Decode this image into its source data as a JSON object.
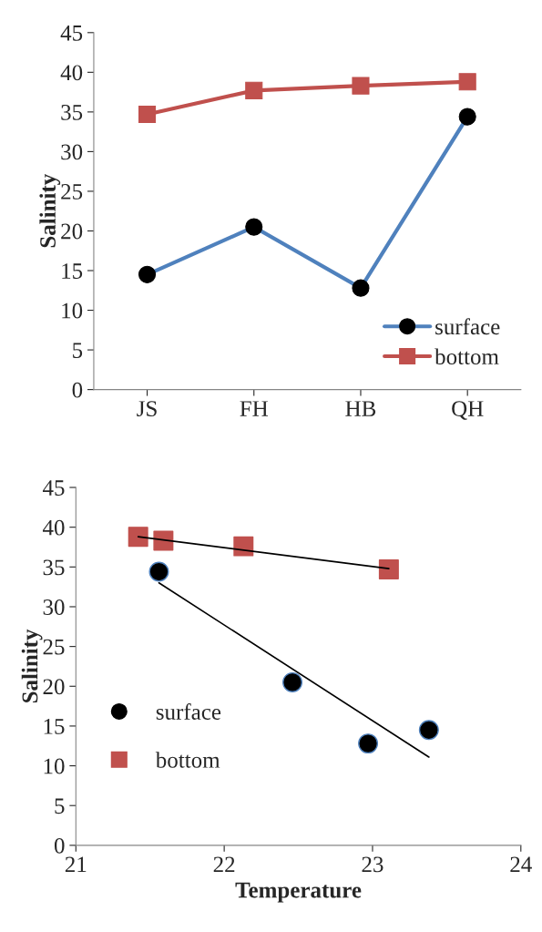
{
  "chart_data": [
    {
      "type": "line",
      "ylabel": "Salinity",
      "categories": [
        "JS",
        "FH",
        "HB",
        "QH"
      ],
      "ylim": [
        0,
        45
      ],
      "yticks": [
        0,
        5,
        10,
        15,
        20,
        25,
        30,
        35,
        40,
        45
      ],
      "grid": false,
      "legend": "bottom right",
      "series": [
        {
          "name": "surface",
          "color": "#4f81bd",
          "marker": "circle",
          "values": [
            14.5,
            20.5,
            12.8,
            34.4
          ]
        },
        {
          "name": "bottom",
          "color": "#c0504d",
          "marker": "square",
          "values": [
            34.7,
            37.7,
            38.3,
            38.8
          ]
        }
      ]
    },
    {
      "type": "scatter",
      "xlabel": "Temperature",
      "ylabel": "Salinity",
      "xlim": [
        21,
        24
      ],
      "xticks": [
        21,
        22,
        23,
        24
      ],
      "ylim": [
        0,
        45
      ],
      "yticks": [
        0,
        5,
        10,
        15,
        20,
        25,
        30,
        35,
        40,
        45
      ],
      "grid": false,
      "legend": "left",
      "series": [
        {
          "name": "surface",
          "color": "#000000",
          "marker": "circle",
          "x": [
            21.56,
            22.46,
            22.97,
            23.38
          ],
          "values": [
            34.4,
            20.5,
            12.8,
            14.5
          ]
        },
        {
          "name": "bottom",
          "color": "#c0504d",
          "marker": "square",
          "x": [
            21.42,
            21.59,
            22.13,
            23.11
          ],
          "values": [
            38.8,
            38.3,
            37.6,
            34.7
          ]
        },
        {
          "type": "line",
          "color": "#000000",
          "marker": "none",
          "x": [
            21.42,
            23.11
          ],
          "values": [
            38.8,
            34.8
          ]
        },
        {
          "type": "line",
          "color": "#000000",
          "marker": "none",
          "x": [
            21.56,
            23.38
          ],
          "values": [
            33.0,
            11.1
          ]
        }
      ]
    }
  ]
}
